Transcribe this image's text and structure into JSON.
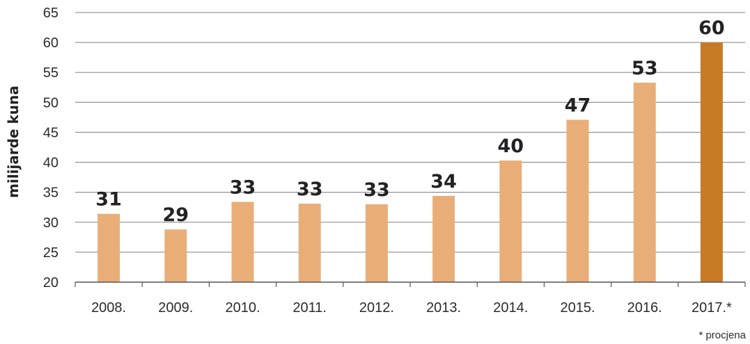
{
  "chart_data": {
    "type": "bar",
    "ylabel": "milijarde kuna",
    "categories": [
      "2008.",
      "2009.",
      "2010.",
      "2011.",
      "2012.",
      "2013.",
      "2014.",
      "2015.",
      "2016.",
      "2017.*"
    ],
    "values": [
      31.4,
      28.8,
      33.4,
      33.1,
      33.0,
      34.4,
      40.3,
      47.1,
      53.3,
      60.0
    ],
    "data_labels": [
      "31",
      "29",
      "33",
      "33",
      "33",
      "34",
      "40",
      "47",
      "53",
      "60"
    ],
    "ylim": [
      20,
      65
    ],
    "yticks": [
      20,
      25,
      30,
      35,
      40,
      45,
      50,
      55,
      60,
      65
    ],
    "grid": true,
    "colors": {
      "bar": "#E9AE78",
      "highlight_bar": "#C87A24",
      "grid": "#9a9a9a",
      "axis": "#555555"
    },
    "highlight_index": 9,
    "footnote": "* procjena"
  }
}
